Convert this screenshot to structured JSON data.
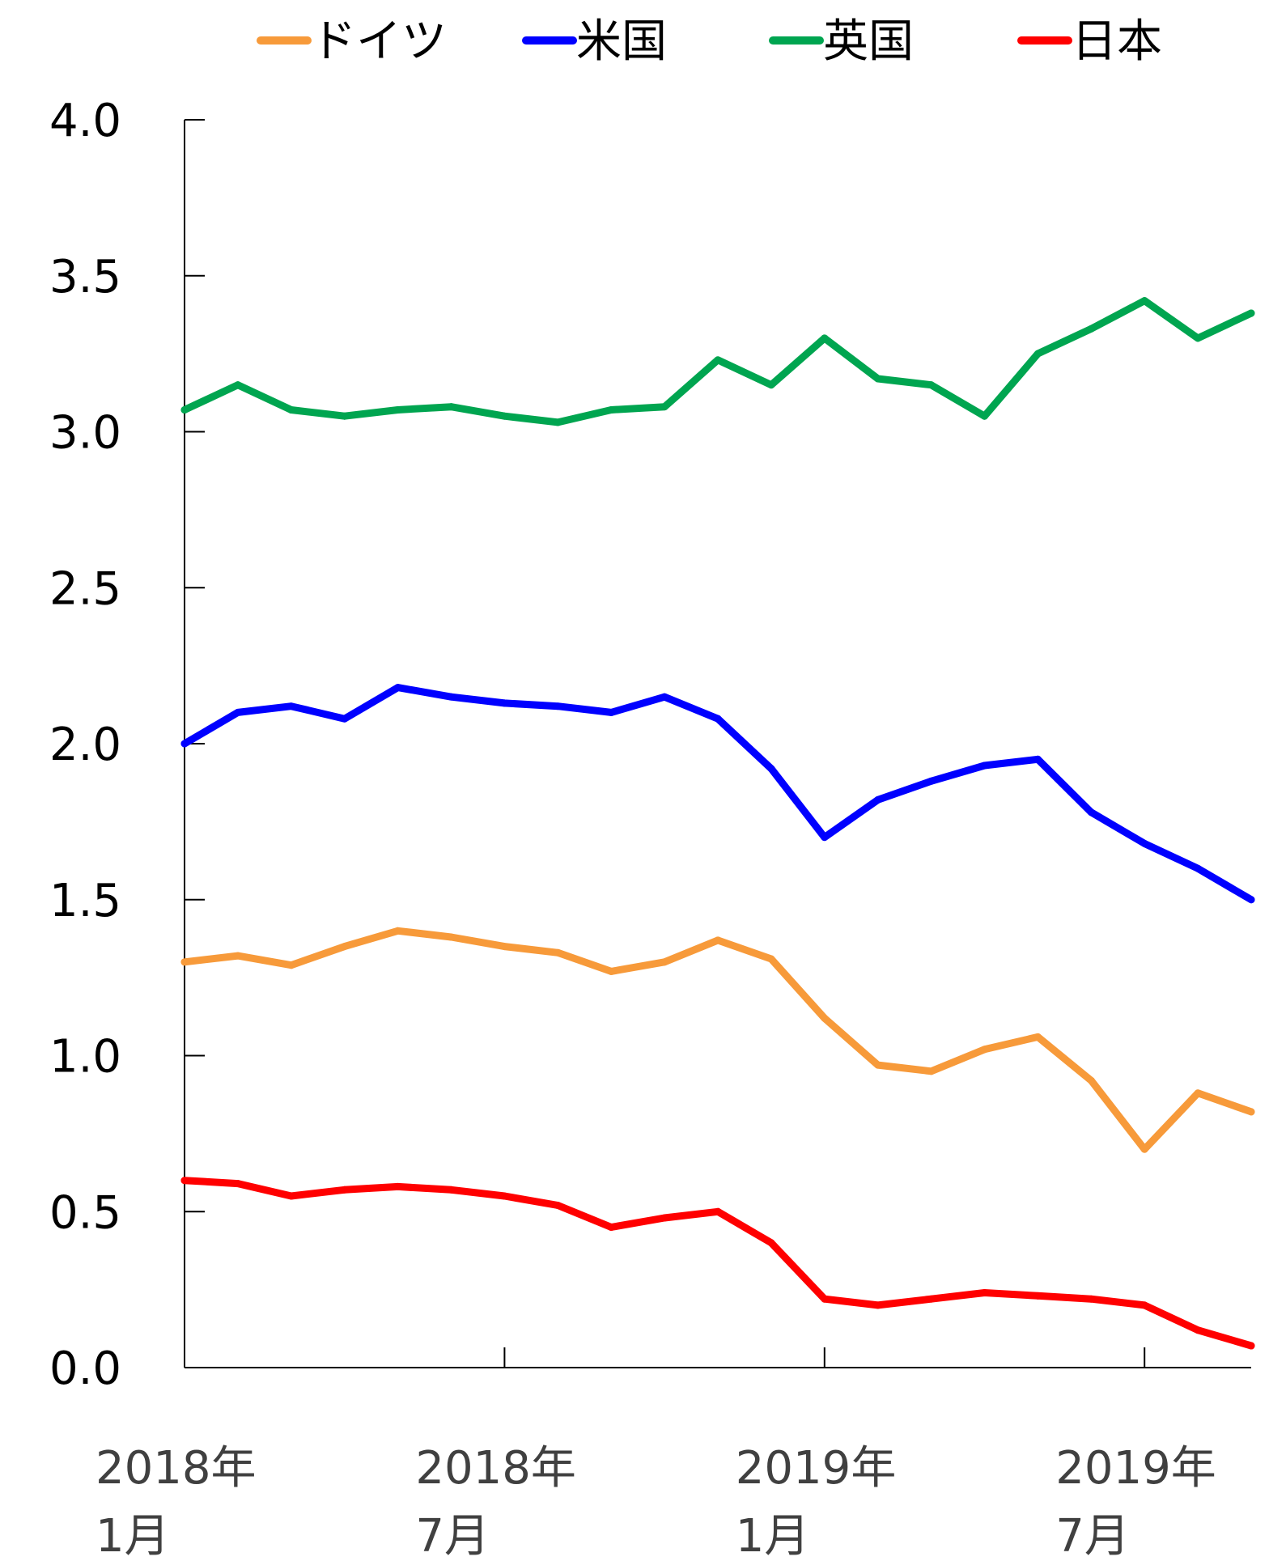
{
  "chart_data": {
    "type": "line",
    "title": "",
    "xlabel": "",
    "ylabel": "",
    "ylim": [
      0.0,
      4.0
    ],
    "yticks": [
      "0.0",
      "0.5",
      "1.0",
      "1.5",
      "2.0",
      "2.5",
      "3.0",
      "3.5",
      "4.0"
    ],
    "xlim": [
      "2018-01",
      "2019-09"
    ],
    "xticks": [
      {
        "date": "2018-01",
        "line1": "2018年",
        "line2": "1月"
      },
      {
        "date": "2018-07",
        "line1": "2018年",
        "line2": "7月"
      },
      {
        "date": "2019-01",
        "line1": "2019年",
        "line2": "1月"
      },
      {
        "date": "2019-07",
        "line1": "2019年",
        "line2": "7月"
      }
    ],
    "legend_position": "top",
    "x": [
      "2018-01",
      "2018-02",
      "2018-03",
      "2018-04",
      "2018-05",
      "2018-06",
      "2018-07",
      "2018-08",
      "2018-09",
      "2018-10",
      "2018-11",
      "2018-12",
      "2019-01",
      "2019-02",
      "2019-03",
      "2019-04",
      "2019-05",
      "2019-06",
      "2019-07",
      "2019-08",
      "2019-09"
    ],
    "series": [
      {
        "name": "ドイツ",
        "color": "#f79a3a",
        "values": [
          1.3,
          1.32,
          1.29,
          1.35,
          1.4,
          1.38,
          1.35,
          1.33,
          1.27,
          1.3,
          1.37,
          1.31,
          1.12,
          0.97,
          0.95,
          1.02,
          1.06,
          0.92,
          0.7,
          0.88,
          0.82
        ]
      },
      {
        "name": "米国",
        "color": "#0000ff",
        "values": [
          2.0,
          2.1,
          2.12,
          2.08,
          2.18,
          2.15,
          2.13,
          2.12,
          2.1,
          2.15,
          2.08,
          1.92,
          1.7,
          1.82,
          1.88,
          1.93,
          1.95,
          1.78,
          1.68,
          1.6,
          1.5
        ]
      },
      {
        "name": "英国",
        "color": "#00a550",
        "values": [
          3.07,
          3.15,
          3.07,
          3.05,
          3.07,
          3.08,
          3.05,
          3.03,
          3.07,
          3.08,
          3.23,
          3.15,
          3.3,
          3.17,
          3.15,
          3.05,
          3.25,
          3.33,
          3.42,
          3.3,
          3.38
        ]
      },
      {
        "name": "日本",
        "color": "#ff0000",
        "values": [
          0.6,
          0.59,
          0.55,
          0.57,
          0.58,
          0.57,
          0.55,
          0.52,
          0.45,
          0.48,
          0.5,
          0.4,
          0.22,
          0.2,
          0.22,
          0.24,
          0.23,
          0.22,
          0.2,
          0.12,
          0.07
        ]
      }
    ]
  }
}
